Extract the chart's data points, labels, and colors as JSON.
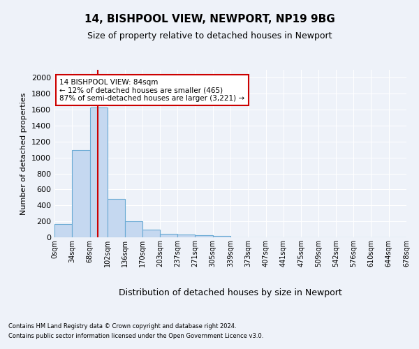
{
  "title1": "14, BISHPOOL VIEW, NEWPORT, NP19 9BG",
  "title2": "Size of property relative to detached houses in Newport",
  "xlabel": "Distribution of detached houses by size in Newport",
  "ylabel": "Number of detached properties",
  "bar_color": "#c5d8f0",
  "bar_edge_color": "#6aaad4",
  "bar_values": [
    165,
    1090,
    1630,
    480,
    200,
    100,
    45,
    38,
    22,
    20,
    0,
    0,
    0,
    0,
    0,
    0,
    0,
    0,
    0,
    0
  ],
  "bin_edges": [
    0,
    34,
    68,
    102,
    136,
    170,
    203,
    237,
    271,
    305,
    339,
    373,
    407,
    441,
    475,
    509,
    542,
    576,
    610,
    644,
    678
  ],
  "tick_labels": [
    "0sqm",
    "34sqm",
    "68sqm",
    "102sqm",
    "136sqm",
    "170sqm",
    "203sqm",
    "237sqm",
    "271sqm",
    "305sqm",
    "339sqm",
    "373sqm",
    "407sqm",
    "441sqm",
    "475sqm",
    "509sqm",
    "542sqm",
    "576sqm",
    "610sqm",
    "644sqm",
    "678sqm"
  ],
  "ylim": [
    0,
    2100
  ],
  "yticks": [
    0,
    200,
    400,
    600,
    800,
    1000,
    1200,
    1400,
    1600,
    1800,
    2000
  ],
  "vline_x": 84,
  "annotation_title": "14 BISHPOOL VIEW: 84sqm",
  "annotation_line1": "← 12% of detached houses are smaller (465)",
  "annotation_line2": "87% of semi-detached houses are larger (3,221) →",
  "footnote1": "Contains HM Land Registry data © Crown copyright and database right 2024.",
  "footnote2": "Contains public sector information licensed under the Open Government Licence v3.0.",
  "background_color": "#eef2f9",
  "plot_bg_color": "#eef2f9",
  "grid_color": "#ffffff",
  "annotation_box_color": "#ffffff",
  "annotation_box_edge": "#cc0000",
  "vline_color": "#cc0000",
  "title1_fontsize": 11,
  "title2_fontsize": 9,
  "ylabel_fontsize": 8,
  "xlabel_fontsize": 9,
  "tick_fontsize": 7,
  "ytick_fontsize": 8,
  "footnote_fontsize": 6,
  "ann_fontsize": 7.5
}
